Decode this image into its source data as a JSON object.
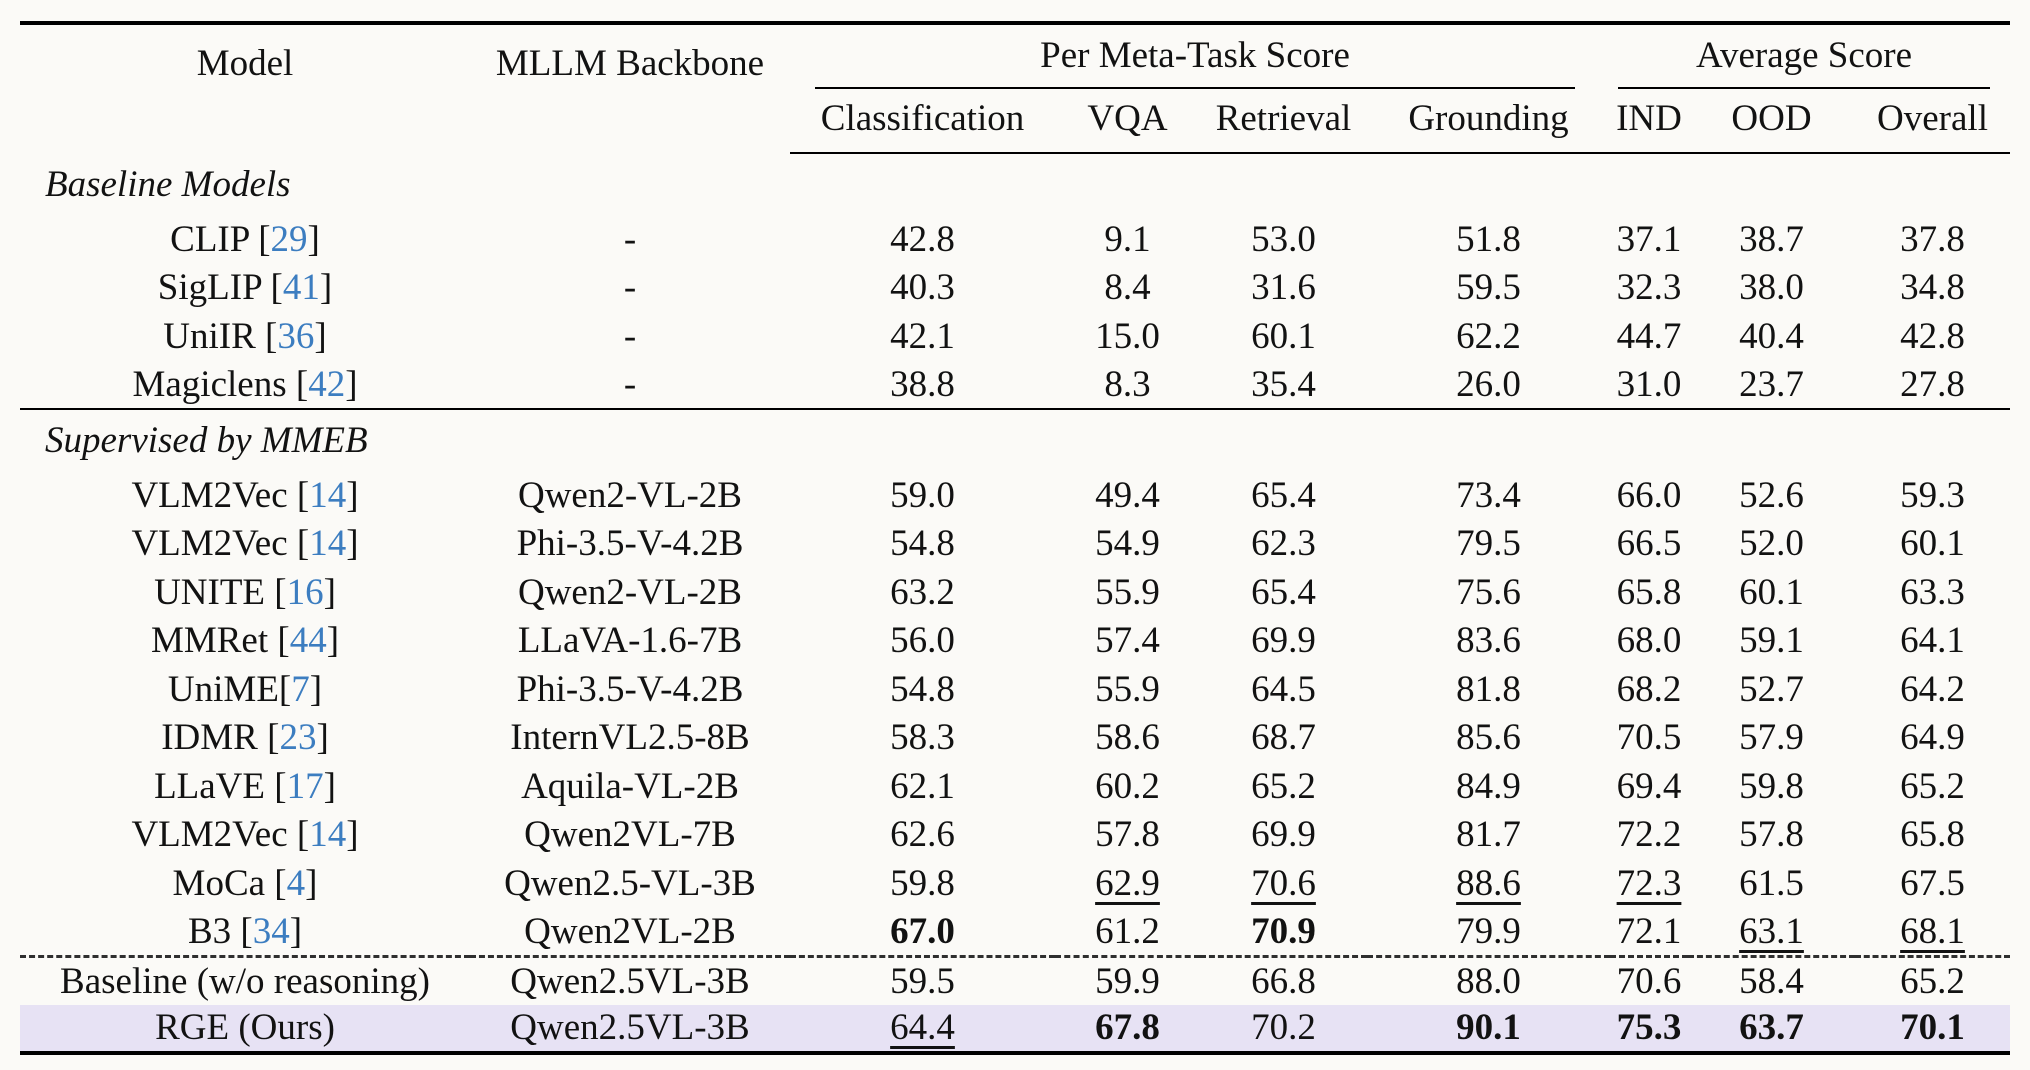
{
  "colors": {
    "citation_blue": "#3c7dc0",
    "highlight_row": "#e7e2f4",
    "text": "#121212",
    "background": "#fbfaf7",
    "rule": "#000000"
  },
  "table": {
    "columns": {
      "model": "Model",
      "backbone": "MLLM Backbone"
    },
    "groups": [
      {
        "label": "Per Meta-Task Score",
        "subcols": [
          "Classification",
          "VQA",
          "Retrieval",
          "Grounding"
        ]
      },
      {
        "label": "Average Score",
        "subcols": [
          "IND",
          "OOD",
          "Overall"
        ]
      }
    ],
    "sections": [
      {
        "label": "Baseline Models",
        "rows": [
          {
            "model": "CLIP",
            "cite": "29",
            "backbone": "-",
            "cells": [
              {
                "v": "42.8"
              },
              {
                "v": "9.1"
              },
              {
                "v": "53.0"
              },
              {
                "v": "51.8"
              },
              {
                "v": "37.1"
              },
              {
                "v": "38.7"
              },
              {
                "v": "37.8"
              }
            ]
          },
          {
            "model": "SigLIP",
            "cite": "41",
            "backbone": "-",
            "cells": [
              {
                "v": "40.3"
              },
              {
                "v": "8.4"
              },
              {
                "v": "31.6"
              },
              {
                "v": "59.5"
              },
              {
                "v": "32.3"
              },
              {
                "v": "38.0"
              },
              {
                "v": "34.8"
              }
            ]
          },
          {
            "model": "UniIR",
            "cite": "36",
            "backbone": "-",
            "cells": [
              {
                "v": "42.1"
              },
              {
                "v": "15.0"
              },
              {
                "v": "60.1"
              },
              {
                "v": "62.2"
              },
              {
                "v": "44.7"
              },
              {
                "v": "40.4"
              },
              {
                "v": "42.8"
              }
            ]
          },
          {
            "model": "Magiclens",
            "cite": "42",
            "backbone": "-",
            "cells": [
              {
                "v": "38.8"
              },
              {
                "v": "8.3"
              },
              {
                "v": "35.4"
              },
              {
                "v": "26.0"
              },
              {
                "v": "31.0"
              },
              {
                "v": "23.7"
              },
              {
                "v": "27.8"
              }
            ]
          }
        ]
      },
      {
        "label": "Supervised by MMEB",
        "rule_top": true,
        "rows": [
          {
            "model": "VLM2Vec",
            "cite": "14",
            "backbone": "Qwen2-VL-2B",
            "cells": [
              {
                "v": "59.0"
              },
              {
                "v": "49.4"
              },
              {
                "v": "65.4"
              },
              {
                "v": "73.4"
              },
              {
                "v": "66.0"
              },
              {
                "v": "52.6"
              },
              {
                "v": "59.3"
              }
            ]
          },
          {
            "model": "VLM2Vec",
            "cite": "14",
            "backbone": "Phi-3.5-V-4.2B",
            "cells": [
              {
                "v": "54.8"
              },
              {
                "v": "54.9"
              },
              {
                "v": "62.3"
              },
              {
                "v": "79.5"
              },
              {
                "v": "66.5"
              },
              {
                "v": "52.0"
              },
              {
                "v": "60.1"
              }
            ]
          },
          {
            "model": "UNITE",
            "cite": "16",
            "backbone": "Qwen2-VL-2B",
            "cells": [
              {
                "v": "63.2"
              },
              {
                "v": "55.9"
              },
              {
                "v": "65.4"
              },
              {
                "v": "75.6"
              },
              {
                "v": "65.8"
              },
              {
                "v": "60.1"
              },
              {
                "v": "63.3"
              }
            ]
          },
          {
            "model": "MMRet",
            "cite": "44",
            "backbone": "LLaVA-1.6-7B",
            "cells": [
              {
                "v": "56.0"
              },
              {
                "v": "57.4"
              },
              {
                "v": "69.9"
              },
              {
                "v": "83.6"
              },
              {
                "v": "68.0"
              },
              {
                "v": "59.1"
              },
              {
                "v": "64.1"
              }
            ]
          },
          {
            "model": "UniME",
            "cite": "7",
            "tight": true,
            "backbone": "Phi-3.5-V-4.2B",
            "cells": [
              {
                "v": "54.8"
              },
              {
                "v": "55.9"
              },
              {
                "v": "64.5"
              },
              {
                "v": "81.8"
              },
              {
                "v": "68.2"
              },
              {
                "v": "52.7"
              },
              {
                "v": "64.2"
              }
            ]
          },
          {
            "model": "IDMR",
            "cite": "23",
            "backbone": "InternVL2.5-8B",
            "cells": [
              {
                "v": "58.3"
              },
              {
                "v": "58.6"
              },
              {
                "v": "68.7"
              },
              {
                "v": "85.6"
              },
              {
                "v": "70.5"
              },
              {
                "v": "57.9"
              },
              {
                "v": "64.9"
              }
            ]
          },
          {
            "model": "LLaVE",
            "cite": "17",
            "backbone": "Aquila-VL-2B",
            "cells": [
              {
                "v": "62.1"
              },
              {
                "v": "60.2"
              },
              {
                "v": "65.2"
              },
              {
                "v": "84.9"
              },
              {
                "v": "69.4"
              },
              {
                "v": "59.8"
              },
              {
                "v": "65.2"
              }
            ]
          },
          {
            "model": "VLM2Vec",
            "cite": "14",
            "backbone": "Qwen2VL-7B",
            "cells": [
              {
                "v": "62.6"
              },
              {
                "v": "57.8"
              },
              {
                "v": "69.9"
              },
              {
                "v": "81.7"
              },
              {
                "v": "72.2"
              },
              {
                "v": "57.8"
              },
              {
                "v": "65.8"
              }
            ]
          },
          {
            "model": "MoCa",
            "cite": "4",
            "backbone": "Qwen2.5-VL-3B",
            "cells": [
              {
                "v": "59.8"
              },
              {
                "v": "62.9",
                "u": 1
              },
              {
                "v": "70.6",
                "u": 1
              },
              {
                "v": "88.6",
                "u": 1
              },
              {
                "v": "72.3",
                "u": 1
              },
              {
                "v": "61.5"
              },
              {
                "v": "67.5"
              }
            ]
          },
          {
            "model": "B3",
            "cite": "34",
            "backbone": "Qwen2VL-2B",
            "cells": [
              {
                "v": "67.0",
                "b": 1
              },
              {
                "v": "61.2"
              },
              {
                "v": "70.9",
                "b": 1
              },
              {
                "v": "79.9"
              },
              {
                "v": "72.1"
              },
              {
                "v": "63.1",
                "u": 1
              },
              {
                "v": "68.1",
                "u": 1
              }
            ]
          }
        ]
      },
      {
        "label": null,
        "dashed_top": true,
        "rows": [
          {
            "model": "Baseline (w/o reasoning)",
            "cite": null,
            "backbone": "Qwen2.5VL-3B",
            "cells": [
              {
                "v": "59.5"
              },
              {
                "v": "59.9"
              },
              {
                "v": "66.8"
              },
              {
                "v": "88.0"
              },
              {
                "v": "70.6"
              },
              {
                "v": "58.4"
              },
              {
                "v": "65.2"
              }
            ]
          },
          {
            "model": "RGE (Ours)",
            "cite": null,
            "backbone": "Qwen2.5VL-3B",
            "highlight": true,
            "cells": [
              {
                "v": "64.4",
                "u": 1
              },
              {
                "v": "67.8",
                "b": 1
              },
              {
                "v": "70.2"
              },
              {
                "v": "90.1",
                "b": 1
              },
              {
                "v": "75.3",
                "b": 1
              },
              {
                "v": "63.7",
                "b": 1
              },
              {
                "v": "70.1",
                "b": 1
              }
            ]
          }
        ]
      }
    ]
  }
}
